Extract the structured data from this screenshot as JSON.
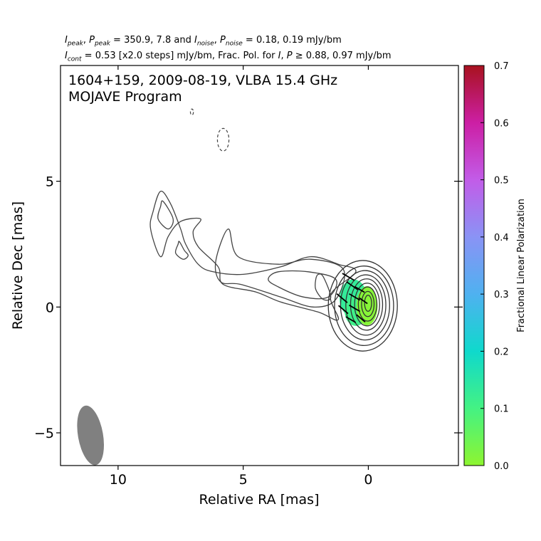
{
  "header": {
    "line1": [
      {
        "t": "I",
        "i": true
      },
      {
        "t": "peak",
        "sub": true
      },
      {
        "t": ", "
      },
      {
        "t": "P",
        "i": true
      },
      {
        "t": "peak",
        "sub": true
      },
      {
        "t": " = 350.9, 7.8 and "
      },
      {
        "t": "I",
        "i": true
      },
      {
        "t": "noise",
        "sub": true
      },
      {
        "t": ", "
      },
      {
        "t": "P",
        "i": true
      },
      {
        "t": "noise",
        "sub": true
      },
      {
        "t": " = 0.18, 0.19 mJy/bm"
      }
    ],
    "line2": [
      {
        "t": "I",
        "i": true
      },
      {
        "t": "cont",
        "sub": true
      },
      {
        "t": " = 0.53 [x2.0 steps] mJy/bm, Frac. Pol. for "
      },
      {
        "t": "I",
        "i": true
      },
      {
        "t": ", "
      },
      {
        "t": "P",
        "i": true
      },
      {
        "t": " ≥  0.88, 0.97 mJy/bm"
      }
    ]
  },
  "chart_data": {
    "type": "contour",
    "title_line1": "1604+159, 2009-08-19, VLBA 15.4 GHz",
    "title_line2": "MOJAVE Program",
    "xlabel": "Relative RA [mas]",
    "ylabel": "Relative Dec [mas]",
    "xlim": [
      12.3,
      -3.6
    ],
    "ylim": [
      -6.3,
      9.6
    ],
    "xticks": [
      10,
      5,
      0
    ],
    "xtick_labels": [
      "10",
      "5",
      "0"
    ],
    "yticks": [
      5,
      0,
      -5
    ],
    "ytick_labels": [
      "5",
      "0",
      "−5"
    ],
    "colorbar": {
      "label": "Fractional Linear Polarization",
      "range": [
        0.0,
        0.7
      ],
      "ticks": [
        0.0,
        0.1,
        0.2,
        0.3,
        0.4,
        0.5,
        0.6,
        0.7
      ],
      "tick_labels": [
        "0.0",
        "0.1",
        "0.2",
        "0.3",
        "0.4",
        "0.5",
        "0.6",
        "0.7"
      ],
      "colors": [
        "#8ef530",
        "#44f283",
        "#0fd9cc",
        "#4fb1f0",
        "#8a93f5",
        "#c25ce8",
        "#cc1fa4",
        "#a8121f"
      ]
    },
    "beam": {
      "x": 11.1,
      "y": -5.1,
      "major": 1.2,
      "minor": 0.5,
      "pa_deg": -10
    },
    "negative_contours": [
      {
        "x": 5.8,
        "y": 6.65,
        "rx": 0.23,
        "ry": 0.45
      },
      {
        "x": 7.05,
        "y": 7.75,
        "rx": 0.06,
        "ry": 0.12
      }
    ],
    "core_contours": [
      {
        "x": 0.22,
        "y": 0.05,
        "rx": 1.38,
        "ry": 1.8
      },
      {
        "x": 0.17,
        "y": 0.05,
        "rx": 1.18,
        "ry": 1.58
      },
      {
        "x": 0.13,
        "y": 0.07,
        "rx": 0.98,
        "ry": 1.38
      },
      {
        "x": 0.1,
        "y": 0.08,
        "rx": 0.8,
        "ry": 1.2
      },
      {
        "x": 0.07,
        "y": 0.1,
        "rx": 0.64,
        "ry": 1.02
      },
      {
        "x": 0.05,
        "y": 0.1,
        "rx": 0.5,
        "ry": 0.85
      },
      {
        "x": 0.03,
        "y": 0.12,
        "rx": 0.37,
        "ry": 0.68
      },
      {
        "x": 0.02,
        "y": 0.12,
        "rx": 0.25,
        "ry": 0.5
      },
      {
        "x": 0.01,
        "y": 0.15,
        "rx": 0.14,
        "ry": 0.32
      }
    ],
    "jet_contours": [
      [
        [
          8.3,
          4.6
        ],
        [
          7.9,
          4.1
        ],
        [
          7.5,
          3.1
        ],
        [
          7.3,
          2.5
        ],
        [
          6.8,
          1.7
        ],
        [
          6.2,
          1.4
        ],
        [
          5.0,
          1.3
        ],
        [
          3.5,
          1.6
        ],
        [
          2.3,
          2.0
        ],
        [
          1.2,
          1.7
        ],
        [
          0.5,
          1.4
        ],
        [
          1.5,
          0.5
        ],
        [
          1.2,
          -0.5
        ],
        [
          2.0,
          -0.2
        ],
        [
          3.5,
          0.2
        ],
        [
          4.5,
          0.6
        ],
        [
          5.8,
          0.9
        ],
        [
          6.0,
          1.6
        ],
        [
          6.8,
          2.4
        ],
        [
          7.0,
          3.0
        ],
        [
          6.7,
          3.5
        ],
        [
          7.5,
          3.4
        ],
        [
          8.0,
          2.8
        ],
        [
          8.3,
          2.0
        ],
        [
          8.7,
          3.1
        ],
        [
          8.6,
          3.8
        ]
      ],
      [
        [
          5.6,
          3.1
        ],
        [
          5.2,
          2.0
        ],
        [
          3.6,
          1.7
        ],
        [
          2.3,
          1.9
        ],
        [
          1.0,
          1.5
        ],
        [
          1.3,
          0.3
        ],
        [
          2.2,
          0.0
        ],
        [
          3.5,
          0.4
        ],
        [
          5.1,
          0.9
        ],
        [
          5.9,
          1.0
        ],
        [
          6.1,
          1.8
        ]
      ],
      [
        [
          3.6,
          1.4
        ],
        [
          2.4,
          1.4
        ],
        [
          1.3,
          1.1
        ],
        [
          1.6,
          0.4
        ],
        [
          2.6,
          0.4
        ],
        [
          3.6,
          0.8
        ],
        [
          4.0,
          1.1
        ]
      ],
      [
        [
          8.2,
          4.2
        ],
        [
          7.8,
          3.5
        ],
        [
          8.0,
          3.1
        ],
        [
          8.4,
          3.5
        ],
        [
          8.3,
          4.0
        ]
      ],
      [
        [
          7.55,
          2.6
        ],
        [
          7.35,
          2.25
        ],
        [
          7.2,
          2.05
        ],
        [
          7.4,
          1.9
        ],
        [
          7.7,
          2.15
        ],
        [
          7.6,
          2.5
        ]
      ],
      [
        [
          2.0,
          1.3
        ],
        [
          1.8,
          1.2
        ],
        [
          1.5,
          0.4
        ],
        [
          1.8,
          0.3
        ],
        [
          2.1,
          0.7
        ],
        [
          2.1,
          1.1
        ]
      ]
    ],
    "polarization_patches": [
      {
        "x": 0.6,
        "y": 0.35,
        "rx": 0.55,
        "ry": 0.75,
        "frac": 0.13
      },
      {
        "x": 0.5,
        "y": -0.15,
        "rx": 0.45,
        "ry": 0.6,
        "frac": 0.11
      },
      {
        "x": 0.05,
        "y": 0.05,
        "rx": 0.42,
        "ry": 0.78,
        "frac": 0.01
      }
    ],
    "evpa_vectors": [
      {
        "x": 0.8,
        "y": 1.2,
        "len": 0.55,
        "angle_deg": 150
      },
      {
        "x": 0.65,
        "y": 0.85,
        "len": 0.55,
        "angle_deg": 145
      },
      {
        "x": 1.05,
        "y": 0.35,
        "len": 0.55,
        "angle_deg": 140
      },
      {
        "x": 0.55,
        "y": 0.4,
        "len": 0.5,
        "angle_deg": 150
      },
      {
        "x": 1.0,
        "y": -0.1,
        "len": 0.5,
        "angle_deg": 140
      },
      {
        "x": 0.55,
        "y": -0.05,
        "len": 0.5,
        "angle_deg": 150
      },
      {
        "x": 0.35,
        "y": 0.7,
        "len": 0.45,
        "angle_deg": 150
      },
      {
        "x": 0.2,
        "y": 0.25,
        "len": 0.4,
        "angle_deg": 145
      },
      {
        "x": 0.3,
        "y": -0.45,
        "len": 0.45,
        "angle_deg": 140
      },
      {
        "x": 0.7,
        "y": -0.5,
        "len": 0.45,
        "angle_deg": 150
      }
    ]
  }
}
